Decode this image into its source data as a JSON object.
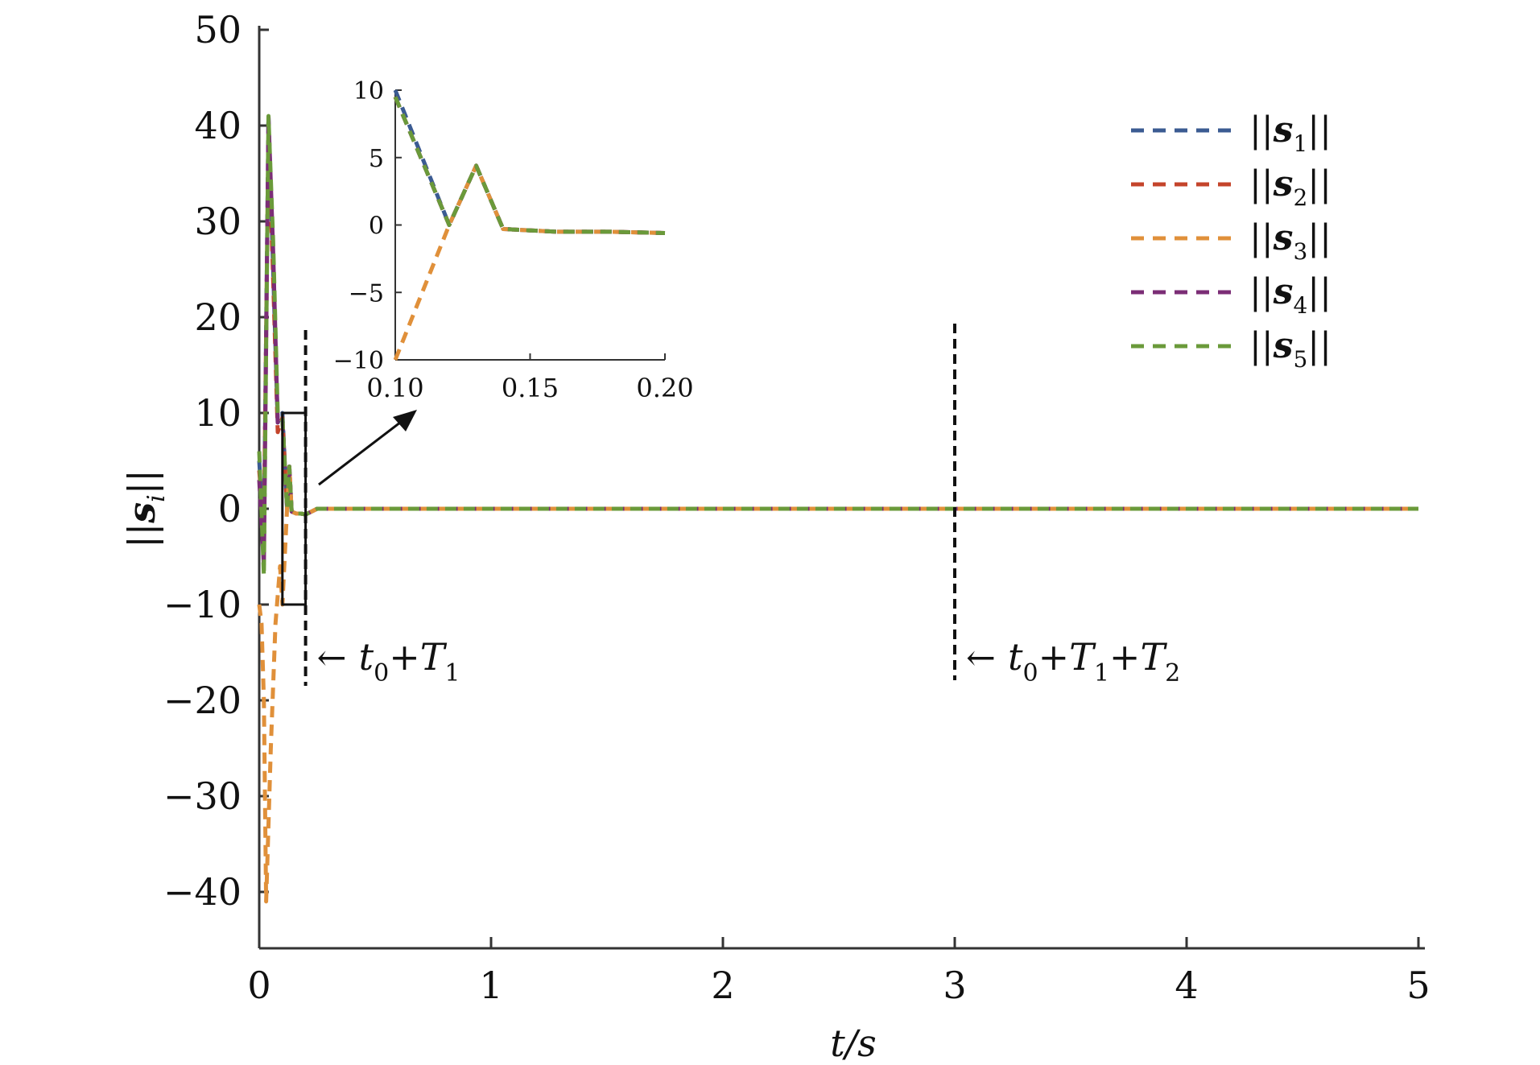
{
  "chart_data": {
    "type": "line",
    "xlabel": "t/s",
    "ylabel": "||s_i||",
    "xlim": [
      0,
      5
    ],
    "ylim": [
      -45,
      50
    ],
    "xticks": [
      "0",
      "1",
      "2",
      "3",
      "4",
      "5"
    ],
    "yticks": [
      "50",
      "40",
      "30",
      "20",
      "10",
      "0",
      "−10",
      "−20",
      "−30",
      "−40"
    ],
    "grid": false,
    "legend_position": "top-right",
    "colors": {
      "s1": "#3b5b92",
      "s2": "#c4442b",
      "s3": "#e0903a",
      "s4": "#7b2d76",
      "s5": "#6a9a3a"
    },
    "series": [
      {
        "name": "||s1||",
        "key": "s1",
        "x": [
          0,
          0.02,
          0.04,
          0.06,
          0.08,
          0.1,
          0.12,
          0.13,
          0.14,
          0.16,
          0.18,
          0.2,
          0.25,
          5
        ],
        "y": [
          5,
          -3,
          41,
          25,
          9,
          10,
          0,
          4.4,
          -0.3,
          -0.5,
          -0.5,
          -0.6,
          0,
          0
        ]
      },
      {
        "name": "||s2||",
        "key": "s2",
        "x": [
          0,
          0.02,
          0.04,
          0.06,
          0.08,
          0.1,
          0.12,
          0.13,
          0.14,
          0.16,
          0.18,
          0.2,
          0.25,
          5
        ],
        "y": [
          4,
          -2,
          39,
          24,
          8,
          9.5,
          0,
          4.4,
          -0.3,
          -0.5,
          -0.5,
          -0.6,
          0,
          0
        ]
      },
      {
        "name": "||s3||",
        "key": "s3",
        "x": [
          0,
          0.01,
          0.02,
          0.03,
          0.05,
          0.07,
          0.09,
          0.1,
          0.12,
          0.13,
          0.14,
          0.16,
          0.18,
          0.2,
          0.25,
          5
        ],
        "y": [
          -10,
          -12,
          -20,
          -41,
          -25,
          -12,
          -6,
          -10,
          0,
          4.4,
          -0.3,
          -0.5,
          -0.5,
          -0.6,
          0,
          0
        ]
      },
      {
        "name": "||s4||",
        "key": "s4",
        "x": [
          0,
          0.02,
          0.04,
          0.06,
          0.08,
          0.1,
          0.12,
          0.13,
          0.14,
          0.16,
          0.18,
          0.2,
          0.25,
          5
        ],
        "y": [
          3,
          -6,
          41,
          27,
          9,
          9.5,
          0,
          4.4,
          -0.3,
          -0.5,
          -0.5,
          -0.6,
          0,
          0
        ]
      },
      {
        "name": "||s5||",
        "key": "s5",
        "x": [
          0,
          0.02,
          0.04,
          0.06,
          0.08,
          0.1,
          0.12,
          0.13,
          0.14,
          0.16,
          0.18,
          0.2,
          0.25,
          5
        ],
        "y": [
          6,
          -7,
          41,
          28,
          10,
          9.5,
          0,
          4.4,
          -0.3,
          -0.5,
          -0.5,
          -0.6,
          0,
          0
        ]
      }
    ],
    "vlines": [
      {
        "x": 0.2,
        "label_base": "t",
        "label_sub1": "0",
        "label_plus1": "+T",
        "label_sub2": "1",
        "label_plus2": "",
        "label_sub3": ""
      },
      {
        "x": 3.0,
        "label_base": "t",
        "label_sub1": "0",
        "label_plus1": "+T",
        "label_sub2": "1",
        "label_plus2": "+T",
        "label_sub3": "2"
      }
    ],
    "zoom_box": {
      "xlim": [
        0.1,
        0.2
      ],
      "ylim": [
        -10,
        10
      ]
    },
    "inset": {
      "xlim": [
        0.1,
        0.2
      ],
      "ylim": [
        -10,
        10
      ],
      "xticks": [
        "0.10",
        "0.15",
        "0.20"
      ],
      "yticks": [
        "10",
        "5",
        "0",
        "−5",
        "−10"
      ]
    }
  }
}
